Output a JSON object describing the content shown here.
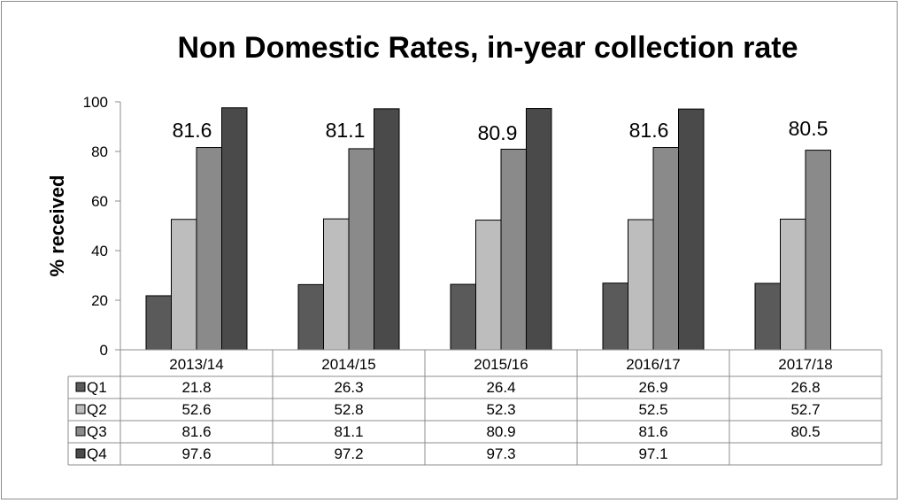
{
  "chart_data": {
    "type": "bar",
    "title": "Non Domestic Rates, in-year collection rate",
    "ylabel": "% received",
    "xlabel": "",
    "ylim": [
      0,
      100
    ],
    "yticks": [
      "0",
      "20",
      "40",
      "60",
      "80",
      "100"
    ],
    "categories": [
      "2013/14",
      "2014/15",
      "2015/16",
      "2016/17",
      "2017/18"
    ],
    "series": [
      {
        "name": "Q1",
        "color": "#5a5a5a",
        "values": [
          21.8,
          26.3,
          26.4,
          26.9,
          26.8
        ],
        "labels": [
          "21.8",
          "26.3",
          "26.4",
          "26.9",
          "26.8"
        ]
      },
      {
        "name": "Q2",
        "color": "#bdbdbd",
        "values": [
          52.6,
          52.8,
          52.3,
          52.5,
          52.7
        ],
        "labels": [
          "52.6",
          "52.8",
          "52.3",
          "52.5",
          "52.7"
        ]
      },
      {
        "name": "Q3",
        "color": "#8a8a8a",
        "values": [
          81.6,
          81.1,
          80.9,
          81.6,
          80.5
        ],
        "labels": [
          "81.6",
          "81.1",
          "80.9",
          "81.6",
          "80.5"
        ]
      },
      {
        "name": "Q4",
        "color": "#4a4a4a",
        "values": [
          97.6,
          97.2,
          97.3,
          97.1,
          null
        ],
        "labels": [
          "97.6",
          "97.2",
          "97.3",
          "97.1",
          ""
        ]
      }
    ],
    "data_labels": {
      "series": "Q3",
      "values": [
        "81.6",
        "81.1",
        "80.9",
        "81.6",
        "80.5"
      ]
    },
    "data_table": true,
    "grid": false,
    "legend": "data-table"
  }
}
